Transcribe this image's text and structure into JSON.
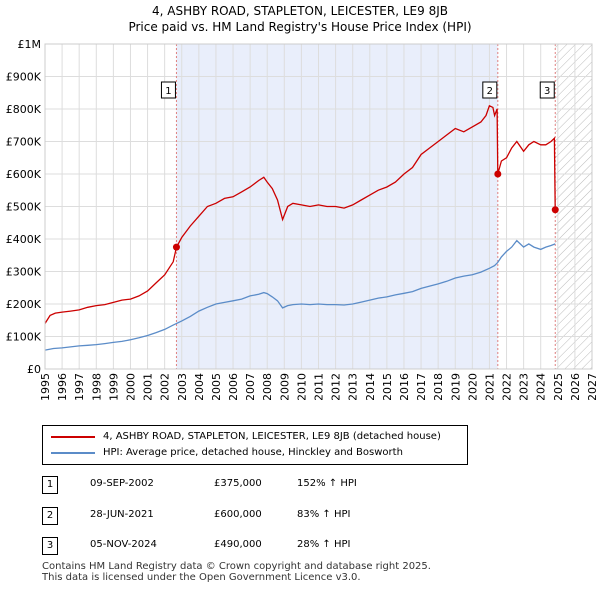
{
  "title": "4, ASHBY ROAD, STAPLETON, LEICESTER, LE9 8JB",
  "subtitle": "Price paid vs. HM Land Registry's House Price Index (HPI)",
  "colors": {
    "property": "#cc0000",
    "hpi": "#5b8cc8",
    "shade": "#e9eefb",
    "sale_marker": "#cc0000"
  },
  "legend": {
    "property": "4, ASHBY ROAD, STAPLETON, LEICESTER, LE9 8JB (detached house)",
    "hpi": "HPI: Average price, detached house, Hinckley and Bosworth"
  },
  "sales": [
    {
      "num": "1",
      "date": "09-SEP-2002",
      "price": "£375,000",
      "hpi": "152% ↑ HPI"
    },
    {
      "num": "2",
      "date": "28-JUN-2021",
      "price": "£600,000",
      "hpi": "83% ↑ HPI"
    },
    {
      "num": "3",
      "date": "05-NOV-2024",
      "price": "£490,000",
      "hpi": "28% ↑ HPI"
    }
  ],
  "footer": {
    "line1": "Contains HM Land Registry data © Crown copyright and database right 2025.",
    "line2": "This data is licensed under the Open Government Licence v3.0."
  },
  "chart_data": {
    "type": "line",
    "xlim": [
      1995,
      2027
    ],
    "ylim": [
      0,
      1000000
    ],
    "x_ticks": [
      "1995",
      "1996",
      "1997",
      "1998",
      "1999",
      "2000",
      "2001",
      "2002",
      "2003",
      "2004",
      "2005",
      "2006",
      "2007",
      "2008",
      "2009",
      "2010",
      "2011",
      "2012",
      "2013",
      "2014",
      "2015",
      "2016",
      "2017",
      "2018",
      "2019",
      "2020",
      "2021",
      "2022",
      "2023",
      "2024",
      "2025",
      "2026",
      "2027"
    ],
    "y_ticks": [
      {
        "value": 0,
        "label": "£0"
      },
      {
        "value": 100000,
        "label": "£100K"
      },
      {
        "value": 200000,
        "label": "£200K"
      },
      {
        "value": 300000,
        "label": "£300K"
      },
      {
        "value": 400000,
        "label": "£400K"
      },
      {
        "value": 500000,
        "label": "£500K"
      },
      {
        "value": 600000,
        "label": "£600K"
      },
      {
        "value": 700000,
        "label": "£700K"
      },
      {
        "value": 800000,
        "label": "£800K"
      },
      {
        "value": 900000,
        "label": "£900K"
      },
      {
        "value": 1000000,
        "label": "£1M"
      }
    ],
    "shaded_ownership": [
      2002.69,
      2021.49
    ],
    "hatched_future_from": 2024.85,
    "sale_markers": [
      {
        "label": "1",
        "x": 2002.69,
        "y": 375000
      },
      {
        "label": "2",
        "x": 2021.49,
        "y": 600000
      },
      {
        "label": "3",
        "x": 2024.85,
        "y": 490000
      }
    ],
    "series": [
      {
        "name": "4, ASHBY ROAD, STAPLETON, LEICESTER, LE9 8JB (detached house)",
        "x": [
          1995.0,
          1995.3,
          1995.6,
          1996.0,
          1996.5,
          1997.0,
          1997.5,
          1998.0,
          1998.5,
          1999.0,
          1999.5,
          2000.0,
          2000.5,
          2001.0,
          2001.5,
          2002.0,
          2002.5,
          2002.69,
          2003.0,
          2003.5,
          2004.0,
          2004.5,
          2005.0,
          2005.5,
          2006.0,
          2006.5,
          2007.0,
          2007.5,
          2007.8,
          2008.0,
          2008.3,
          2008.6,
          2008.9,
          2009.2,
          2009.5,
          2010.0,
          2010.5,
          2011.0,
          2011.5,
          2012.0,
          2012.5,
          2013.0,
          2013.5,
          2014.0,
          2014.5,
          2015.0,
          2015.5,
          2016.0,
          2016.5,
          2017.0,
          2017.5,
          2018.0,
          2018.5,
          2019.0,
          2019.5,
          2020.0,
          2020.5,
          2020.8,
          2021.0,
          2021.2,
          2021.3,
          2021.45,
          2021.49,
          2021.7,
          2022.0,
          2022.3,
          2022.6,
          2023.0,
          2023.3,
          2023.6,
          2024.0,
          2024.3,
          2024.6,
          2024.8,
          2024.85
        ],
        "y": [
          140000,
          165000,
          172000,
          175000,
          178000,
          182000,
          190000,
          195000,
          198000,
          205000,
          212000,
          215000,
          225000,
          240000,
          265000,
          290000,
          330000,
          375000,
          405000,
          440000,
          470000,
          500000,
          510000,
          525000,
          530000,
          545000,
          560000,
          580000,
          590000,
          575000,
          555000,
          520000,
          460000,
          500000,
          510000,
          505000,
          500000,
          505000,
          500000,
          500000,
          495000,
          505000,
          520000,
          535000,
          550000,
          560000,
          575000,
          600000,
          620000,
          660000,
          680000,
          700000,
          720000,
          740000,
          730000,
          745000,
          760000,
          780000,
          810000,
          805000,
          780000,
          800000,
          600000,
          640000,
          650000,
          680000,
          700000,
          670000,
          690000,
          700000,
          690000,
          690000,
          700000,
          710000,
          490000
        ]
      },
      {
        "name": "HPI: Average price, detached house, Hinckley and Bosworth",
        "x": [
          1995.0,
          1995.5,
          1996.0,
          1996.5,
          1997.0,
          1997.5,
          1998.0,
          1998.5,
          1999.0,
          1999.5,
          2000.0,
          2000.5,
          2001.0,
          2001.5,
          2002.0,
          2002.5,
          2003.0,
          2003.5,
          2004.0,
          2004.5,
          2005.0,
          2005.5,
          2006.0,
          2006.5,
          2007.0,
          2007.5,
          2007.8,
          2008.0,
          2008.3,
          2008.6,
          2008.9,
          2009.2,
          2009.5,
          2010.0,
          2010.5,
          2011.0,
          2011.5,
          2012.0,
          2012.5,
          2013.0,
          2013.5,
          2014.0,
          2014.5,
          2015.0,
          2015.5,
          2016.0,
          2016.5,
          2017.0,
          2017.5,
          2018.0,
          2018.5,
          2019.0,
          2019.5,
          2020.0,
          2020.5,
          2021.0,
          2021.3,
          2021.49,
          2021.7,
          2022.0,
          2022.3,
          2022.6,
          2023.0,
          2023.3,
          2023.6,
          2024.0,
          2024.3,
          2024.6,
          2024.85
        ],
        "y": [
          58000,
          63000,
          65000,
          68000,
          71000,
          73000,
          75000,
          78000,
          82000,
          85000,
          90000,
          96000,
          103000,
          112000,
          122000,
          135000,
          148000,
          162000,
          178000,
          190000,
          200000,
          205000,
          210000,
          215000,
          225000,
          230000,
          235000,
          232000,
          222000,
          210000,
          188000,
          195000,
          198000,
          200000,
          198000,
          200000,
          198000,
          198000,
          197000,
          200000,
          206000,
          212000,
          218000,
          222000,
          228000,
          233000,
          238000,
          248000,
          255000,
          262000,
          270000,
          280000,
          286000,
          290000,
          298000,
          310000,
          318000,
          328000,
          345000,
          362000,
          375000,
          395000,
          375000,
          385000,
          375000,
          368000,
          375000,
          380000,
          385000
        ]
      }
    ]
  }
}
